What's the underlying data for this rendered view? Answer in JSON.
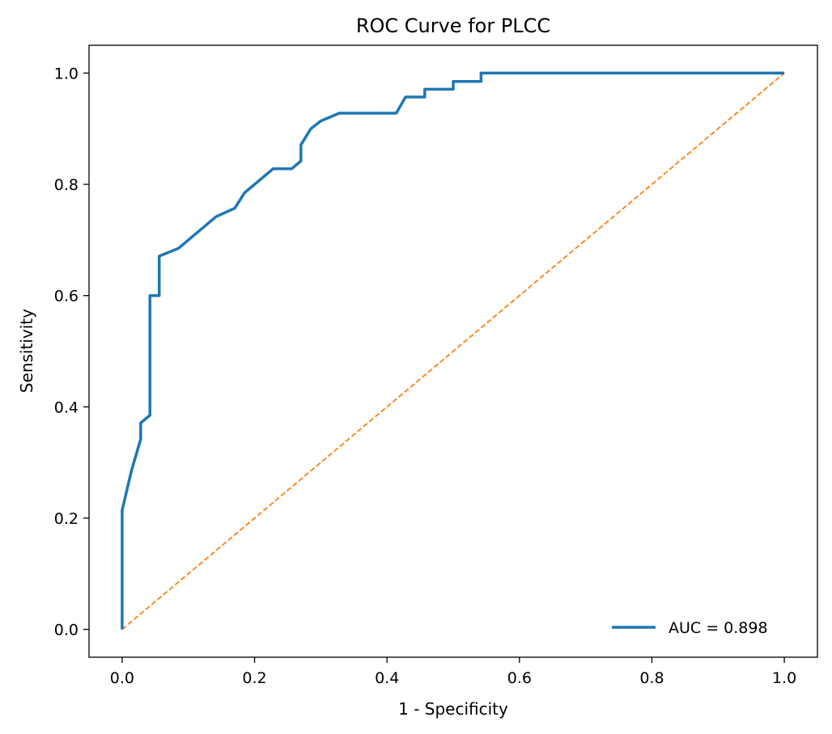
{
  "chart_data": {
    "type": "line",
    "title": "ROC Curve for PLCC",
    "xlabel": "1 - Specificity",
    "ylabel": "Sensitivity",
    "xlim": [
      -0.05,
      1.05
    ],
    "ylim": [
      -0.05,
      1.05
    ],
    "xticks": [
      0.0,
      0.2,
      0.4,
      0.6,
      0.8,
      1.0
    ],
    "yticks": [
      0.0,
      0.2,
      0.4,
      0.6,
      0.8,
      1.0
    ],
    "xtick_labels": [
      "0.0",
      "0.2",
      "0.4",
      "0.6",
      "0.8",
      "1.0"
    ],
    "ytick_labels": [
      "0.0",
      "0.2",
      "0.4",
      "0.6",
      "0.8",
      "1.0"
    ],
    "grid": false,
    "legend_position": "lower-right",
    "series": [
      {
        "name": "AUC = 0.898",
        "color": "#1f77b4",
        "style": "solid",
        "x": [
          0.0,
          0.0,
          0.014,
          0.028,
          0.028,
          0.042,
          0.042,
          0.056,
          0.056,
          0.085,
          0.142,
          0.17,
          0.185,
          0.228,
          0.256,
          0.27,
          0.27,
          0.285,
          0.3,
          0.328,
          0.414,
          0.428,
          0.457,
          0.457,
          0.5,
          0.5,
          0.542,
          0.542,
          1.0
        ],
        "y": [
          0.0,
          0.214,
          0.285,
          0.342,
          0.371,
          0.385,
          0.6,
          0.6,
          0.671,
          0.685,
          0.742,
          0.757,
          0.785,
          0.828,
          0.828,
          0.842,
          0.871,
          0.9,
          0.914,
          0.928,
          0.928,
          0.957,
          0.957,
          0.971,
          0.971,
          0.985,
          0.985,
          1.0,
          1.0
        ]
      },
      {
        "name": "",
        "color": "#ff7f0e",
        "style": "dashed",
        "x": [
          0.0,
          1.0
        ],
        "y": [
          0.0,
          1.0
        ]
      }
    ],
    "legend_entries": [
      "AUC = 0.898"
    ]
  }
}
